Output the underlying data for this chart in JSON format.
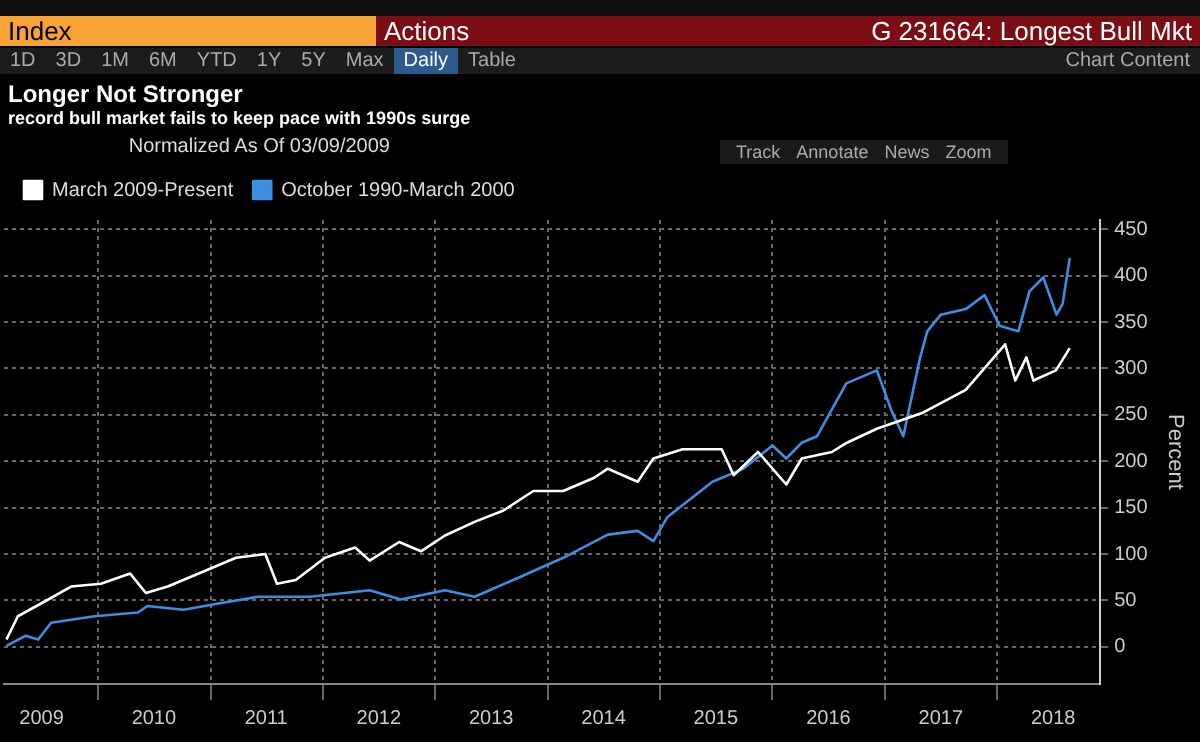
{
  "chart_data": {
    "type": "line",
    "title": "Longer Not Stronger",
    "subtitle": "record bull market fails to keep pace with 1990s surge",
    "ylabel": "Percent",
    "legend_title": "Normalized As Of 03/09/2009",
    "legend": "top left",
    "grid": true,
    "annotations": [
      "Index",
      "Actions",
      "G 231664: Longest Bull Mkt",
      "1D",
      "3D",
      "1M",
      "6M",
      "YTD",
      "1Y",
      "5Y",
      "Max",
      "Daily",
      "Table",
      "Chart Content",
      "Track",
      "Annotate",
      "News",
      "Zoom"
    ],
    "xlim": [
      "2009-03-01",
      "2018-12-01"
    ],
    "xticks": [
      {
        "value": "2009-07-01",
        "label": "2009"
      },
      {
        "value": "2010-01-01",
        "label": null
      },
      {
        "value": "2010-07-01",
        "label": "2010"
      },
      {
        "value": "2011-01-01",
        "label": null
      },
      {
        "value": "2011-07-01",
        "label": "2011"
      },
      {
        "value": "2012-01-01",
        "label": null
      },
      {
        "value": "2012-07-01",
        "label": "2012"
      },
      {
        "value": "2013-01-01",
        "label": null
      },
      {
        "value": "2013-07-01",
        "label": "2013"
      },
      {
        "value": "2014-01-01",
        "label": null
      },
      {
        "value": "2014-07-01",
        "label": "2014"
      },
      {
        "value": "2015-01-01",
        "label": null
      },
      {
        "value": "2015-07-01",
        "label": "2015"
      },
      {
        "value": "2016-01-01",
        "label": null
      },
      {
        "value": "2016-07-01",
        "label": "2016"
      },
      {
        "value": "2017-01-01",
        "label": null
      },
      {
        "value": "2017-07-01",
        "label": "2017"
      },
      {
        "value": "2018-01-01",
        "label": null
      },
      {
        "value": "2018-07-01",
        "label": "2018"
      }
    ],
    "ylim": [
      -40,
      460
    ],
    "yticks": [
      0,
      50,
      100,
      150,
      200,
      250,
      300,
      350,
      400,
      450
    ],
    "series": [
      {
        "name": "March 2009-Present",
        "color": "#ffffff",
        "x": [
          "2009-03-09",
          "2009-04-15",
          "2009-07-01",
          "2009-10-05",
          "2010-01-10",
          "2010-04-15",
          "2010-06-05",
          "2010-08-15",
          "2010-12-15",
          "2011-03-25",
          "2011-06-28",
          "2011-08-05",
          "2011-10-05",
          "2012-01-08",
          "2012-04-15",
          "2012-06-01",
          "2012-09-05",
          "2012-11-15",
          "2013-02-01",
          "2013-05-10",
          "2013-08-10",
          "2013-11-15",
          "2014-02-20",
          "2014-05-30",
          "2014-07-15",
          "2014-10-20",
          "2014-12-10",
          "2015-03-15",
          "2015-07-20",
          "2015-08-28",
          "2015-11-15",
          "2016-02-15",
          "2016-04-05",
          "2016-07-12",
          "2016-08-30",
          "2016-12-05",
          "2017-05-01",
          "2017-09-20",
          "2018-01-26",
          "2018-02-28",
          "2018-04-05",
          "2018-04-28",
          "2018-07-10",
          "2018-08-24"
        ],
        "values": [
          8,
          33,
          47,
          65,
          68,
          79,
          58,
          65,
          82,
          96,
          100,
          68,
          72,
          96,
          107,
          93,
          113,
          103,
          120,
          135,
          147,
          168,
          168,
          182,
          192,
          178,
          203,
          213,
          213,
          185,
          210,
          175,
          203,
          210,
          220,
          235,
          252,
          277,
          326,
          287,
          312,
          287,
          298,
          322
        ]
      },
      {
        "name": "October 1990-March 2000",
        "color": "#3d8ee0",
        "x": [
          "2009-03-09",
          "2009-05-10",
          "2009-06-20",
          "2009-08-01",
          "2009-12-20",
          "2010-05-10",
          "2010-06-10",
          "2010-10-05",
          "2011-02-01",
          "2011-06-05",
          "2011-11-20",
          "2012-06-01",
          "2012-09-10",
          "2013-02-01",
          "2013-05-08",
          "2013-10-01",
          "2014-02-20",
          "2014-07-15",
          "2014-10-20",
          "2014-12-10",
          "2015-01-25",
          "2015-06-20",
          "2015-09-28",
          "2016-01-01",
          "2016-02-15",
          "2016-04-05",
          "2016-05-25",
          "2016-08-28",
          "2016-12-05",
          "2017-01-20",
          "2017-03-01",
          "2017-04-25",
          "2017-05-18",
          "2017-07-01",
          "2017-09-20",
          "2017-11-20",
          "2018-01-08",
          "2018-03-10",
          "2018-04-15",
          "2018-05-30",
          "2018-07-12",
          "2018-08-01",
          "2018-08-24"
        ],
        "values": [
          1,
          12,
          8,
          26,
          33,
          37,
          44,
          40,
          47,
          54,
          54,
          61,
          51,
          61,
          54,
          75,
          96,
          121,
          125,
          114,
          140,
          178,
          192,
          217,
          203,
          220,
          227,
          284,
          298,
          256,
          227,
          312,
          340,
          358,
          364,
          379,
          346,
          340,
          383,
          398,
          358,
          370,
          419
        ]
      }
    ]
  }
}
